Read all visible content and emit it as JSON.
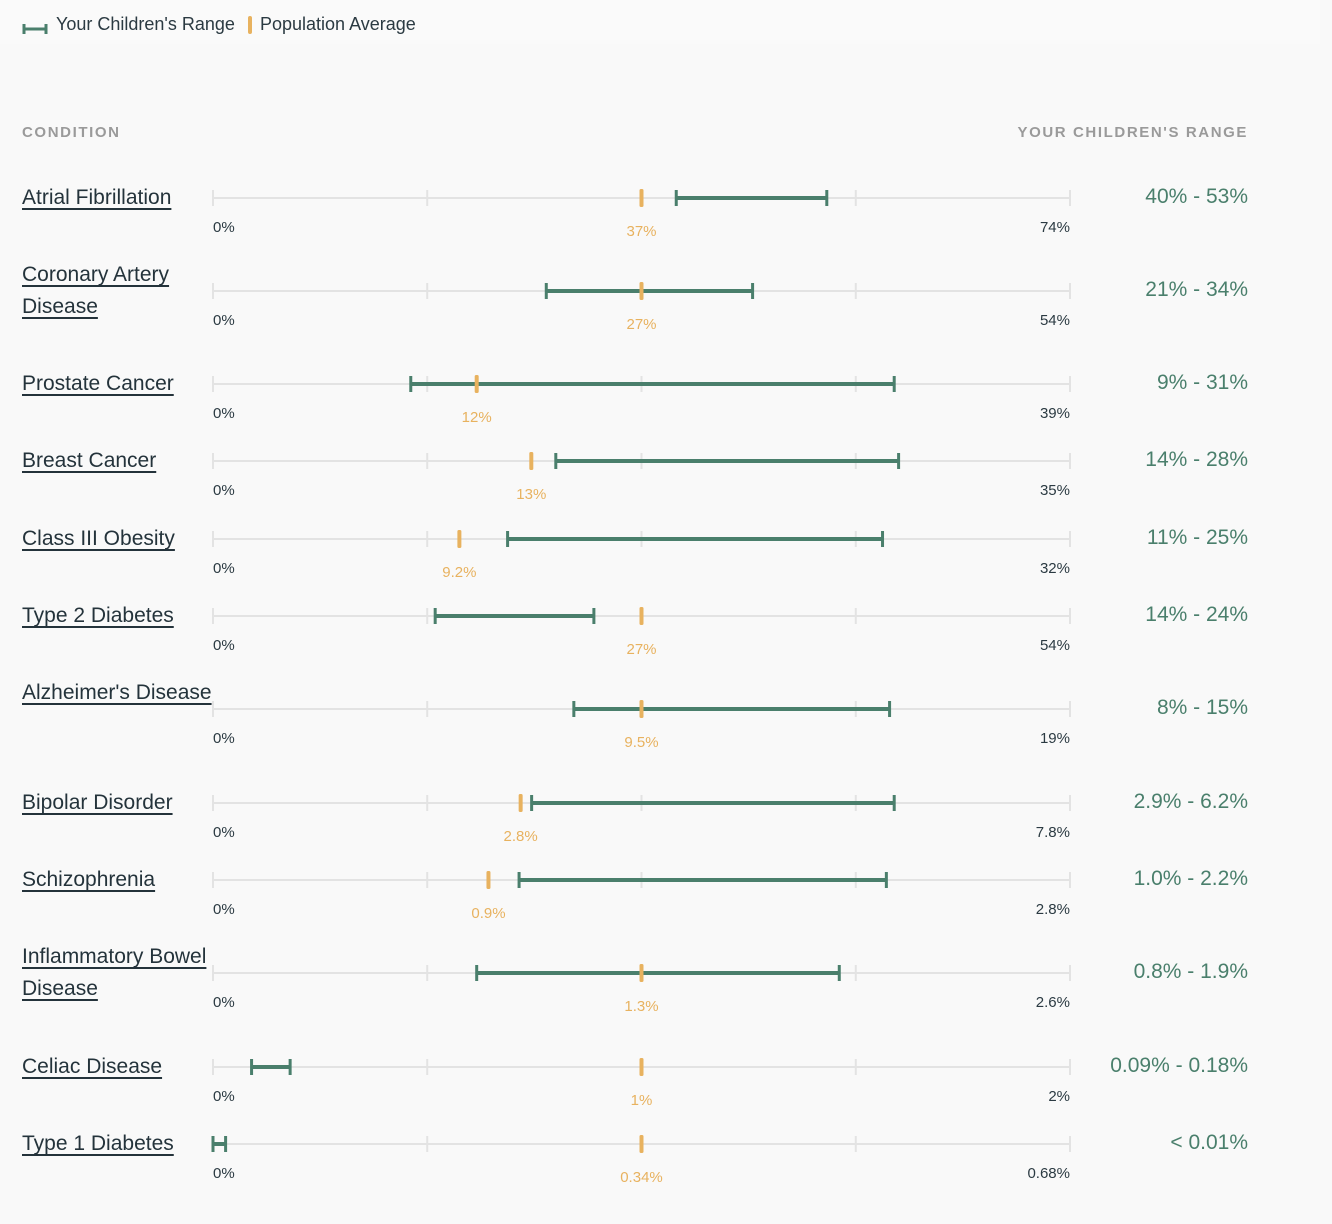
{
  "legend": {
    "range_label": "Your Children's Range",
    "average_label": "Population Average"
  },
  "headers": {
    "condition": "CONDITION",
    "range": "YOUR CHILDREN'S RANGE"
  },
  "colors": {
    "range": "#4a7f6c",
    "average": "#e8b25f",
    "axis": "#e3e3e3"
  },
  "chart_data": {
    "type": "range",
    "rows": [
      {
        "name": "Atrial Fibrillation",
        "min_label": "0%",
        "max_label": "74%",
        "axis_max": 74,
        "low": 40,
        "high": 53,
        "avg": 37,
        "avg_label": "37%",
        "range_label": "40% - 53%"
      },
      {
        "name": "Coronary Artery Disease",
        "min_label": "0%",
        "max_label": "54%",
        "axis_max": 54,
        "low": 21,
        "high": 34,
        "avg": 27,
        "avg_label": "27%",
        "range_label": "21% - 34%"
      },
      {
        "name": "Prostate Cancer",
        "min_label": "0%",
        "max_label": "39%",
        "axis_max": 39,
        "low": 9,
        "high": 31,
        "avg": 12,
        "avg_label": "12%",
        "range_label": "9% - 31%"
      },
      {
        "name": "Breast Cancer",
        "min_label": "0%",
        "max_label": "35%",
        "axis_max": 35,
        "low": 14,
        "high": 28,
        "avg": 13,
        "avg_label": "13%",
        "range_label": "14% - 28%"
      },
      {
        "name": "Class III Obesity",
        "min_label": "0%",
        "max_label": "32%",
        "axis_max": 32,
        "low": 11,
        "high": 25,
        "avg": 9.2,
        "avg_label": "9.2%",
        "range_label": "11% - 25%"
      },
      {
        "name": "Type 2 Diabetes",
        "min_label": "0%",
        "max_label": "54%",
        "axis_max": 54,
        "low": 14,
        "high": 24,
        "avg": 27,
        "avg_label": "27%",
        "range_label": "14% - 24%"
      },
      {
        "name": "Alzheimer's Disease",
        "min_label": "0%",
        "max_label": "19%",
        "axis_max": 19,
        "low": 8,
        "high": 15,
        "avg": 9.5,
        "avg_label": "9.5%",
        "range_label": "8% - 15%"
      },
      {
        "name": "Bipolar Disorder",
        "min_label": "0%",
        "max_label": "7.8%",
        "axis_max": 7.8,
        "low": 2.9,
        "high": 6.2,
        "avg": 2.8,
        "avg_label": "2.8%",
        "range_label": "2.9% - 6.2%"
      },
      {
        "name": "Schizophrenia",
        "min_label": "0%",
        "max_label": "2.8%",
        "axis_max": 2.8,
        "low": 1.0,
        "high": 2.2,
        "avg": 0.9,
        "avg_label": "0.9%",
        "range_label": "1.0% - 2.2%"
      },
      {
        "name": "Inflammatory Bowel Disease",
        "min_label": "0%",
        "max_label": "2.6%",
        "axis_max": 2.6,
        "low": 0.8,
        "high": 1.9,
        "avg": 1.3,
        "avg_label": "1.3%",
        "range_label": "0.8% - 1.9%"
      },
      {
        "name": "Celiac Disease",
        "min_label": "0%",
        "max_label": "2%",
        "axis_max": 2,
        "low": 0.09,
        "high": 0.18,
        "avg": 1,
        "avg_label": "1%",
        "range_label": "0.09% - 0.18%"
      },
      {
        "name": "Type 1 Diabetes",
        "min_label": "0%",
        "max_label": "0.68%",
        "axis_max": 0.68,
        "low": 0,
        "high": 0.01,
        "avg": 0.34,
        "avg_label": "0.34%",
        "range_label": "< 0.01%"
      }
    ]
  }
}
